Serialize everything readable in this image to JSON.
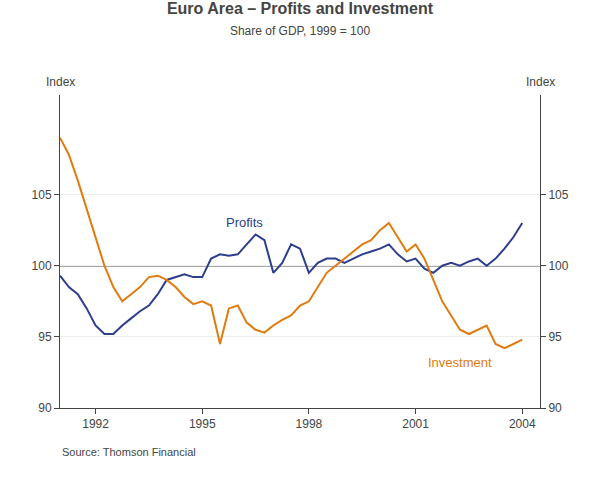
{
  "chart_data": {
    "type": "line",
    "title": "Euro Area – Profits and Investment",
    "subtitle": "Share of GDP, 1999 = 100",
    "ylabel": "Index",
    "y2label": "Index",
    "source": "Source: Thomson Financial",
    "x": [
      1991.0,
      1991.25,
      1991.5,
      1991.75,
      1992.0,
      1992.25,
      1992.5,
      1992.75,
      1993.0,
      1993.25,
      1993.5,
      1993.75,
      1994.0,
      1994.25,
      1994.5,
      1994.75,
      1995.0,
      1995.25,
      1995.5,
      1995.75,
      1996.0,
      1996.25,
      1996.5,
      1996.75,
      1997.0,
      1997.25,
      1997.5,
      1997.75,
      1998.0,
      1998.25,
      1998.5,
      1998.75,
      1999.0,
      1999.25,
      1999.5,
      1999.75,
      2000.0,
      2000.25,
      2000.5,
      2000.75,
      2001.0,
      2001.25,
      2001.5,
      2001.75,
      2002.0,
      2002.25,
      2002.5,
      2002.75,
      2003.0,
      2003.25,
      2003.5,
      2003.75,
      2004.0
    ],
    "series": [
      {
        "name": "Profits",
        "color": "#2c3e8c",
        "values": [
          99.3,
          98.5,
          98.0,
          97.0,
          95.8,
          95.2,
          95.2,
          95.8,
          96.3,
          96.8,
          97.2,
          98.0,
          99.0,
          99.2,
          99.4,
          99.2,
          99.2,
          100.5,
          100.8,
          100.7,
          100.8,
          101.5,
          102.2,
          101.8,
          99.5,
          100.2,
          101.5,
          101.2,
          99.5,
          100.2,
          100.5,
          100.5,
          100.2,
          100.5,
          100.8,
          101.0,
          101.2,
          101.5,
          100.8,
          100.3,
          100.5,
          99.8,
          99.5,
          100.0,
          100.2,
          100.0,
          100.3,
          100.5,
          100.0,
          100.5,
          101.2,
          102.0,
          103.0
        ]
      },
      {
        "name": "Investment",
        "color": "#e07b10",
        "values": [
          109.0,
          107.8,
          106.0,
          104.0,
          102.0,
          100.0,
          98.5,
          97.5,
          98.0,
          98.5,
          99.2,
          99.3,
          99.0,
          98.5,
          97.8,
          97.3,
          97.5,
          97.2,
          94.5,
          97.0,
          97.2,
          96.0,
          95.5,
          95.3,
          95.8,
          96.2,
          96.5,
          97.2,
          97.5,
          98.5,
          99.5,
          100.0,
          100.5,
          101.0,
          101.5,
          101.8,
          102.5,
          103.0,
          102.0,
          101.0,
          101.5,
          100.5,
          99.0,
          97.5,
          96.5,
          95.5,
          95.2,
          95.5,
          95.8,
          94.5,
          94.2,
          94.5,
          94.8
        ]
      }
    ],
    "xlim": [
      1991.0,
      2004.5
    ],
    "xticks": [
      1992,
      1995,
      1998,
      2001,
      2004
    ],
    "ylim": [
      90,
      112
    ],
    "yticks": [
      90,
      95,
      100,
      105
    ],
    "y2lim": [
      90,
      112
    ],
    "y2ticks": [
      90,
      95,
      100,
      105
    ],
    "grid": true,
    "hline": {
      "value": 100,
      "color": "#555555"
    },
    "annotations": [
      {
        "text": "Profits",
        "x": 1995.6,
        "y": 102.4,
        "color": "#2c3e8c"
      },
      {
        "text": "Investment",
        "x": 2001.3,
        "y": 92.5,
        "color": "#e07b10"
      }
    ]
  }
}
